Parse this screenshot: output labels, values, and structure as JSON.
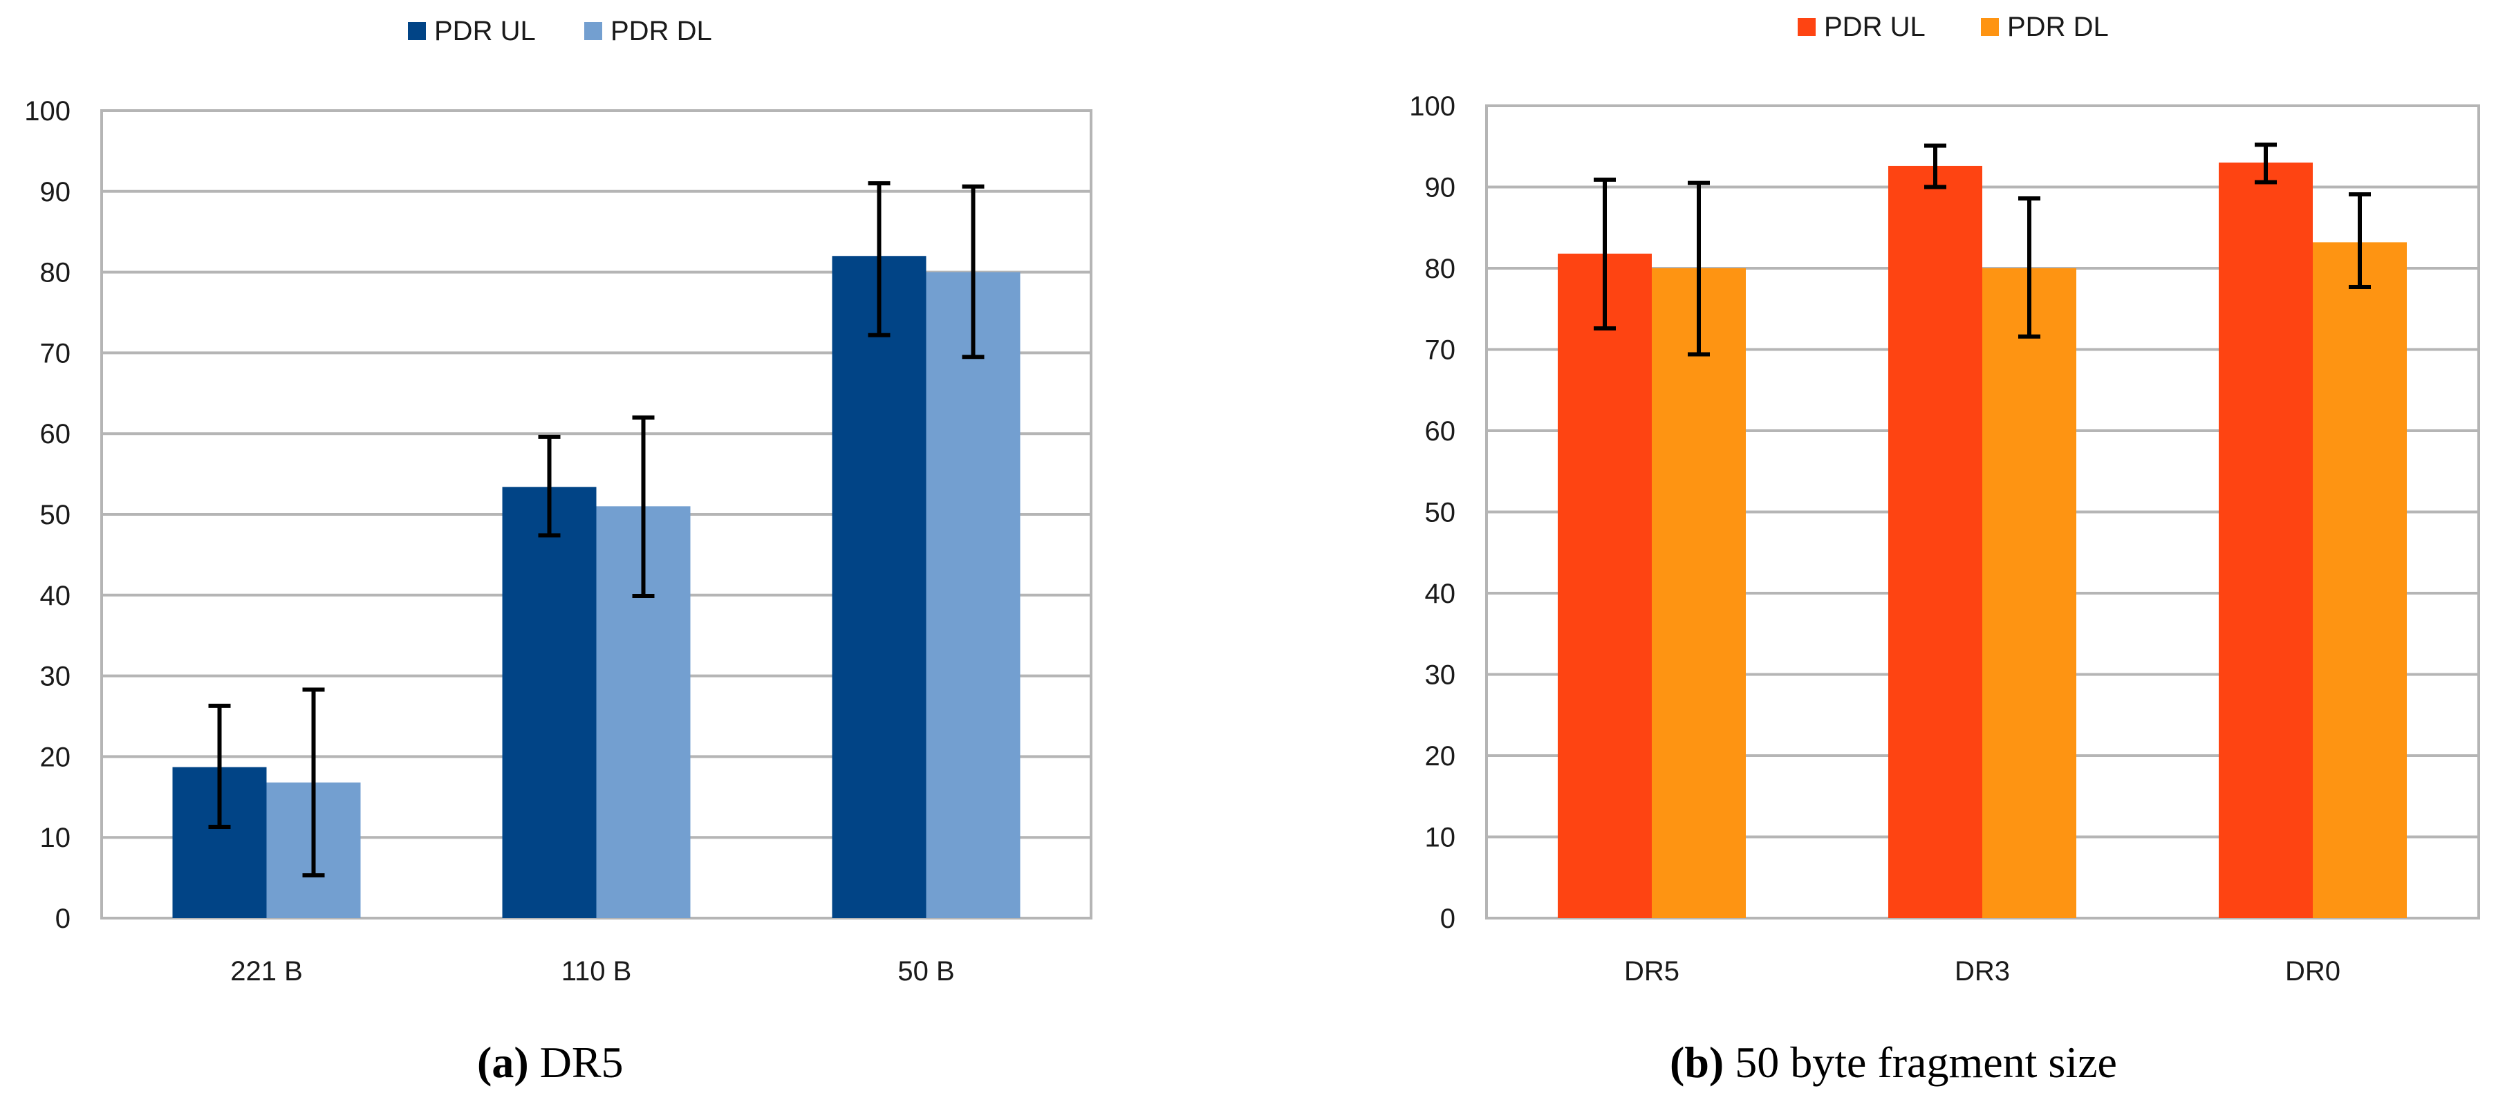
{
  "chart_data": [
    {
      "type": "bar",
      "panel": "(a)",
      "title": "DR5",
      "categories": [
        "221 B",
        "110 B",
        "50 B"
      ],
      "series": [
        {
          "name": "PDR UL",
          "color": "#014486",
          "values": [
            18.7,
            53.4,
            82.0
          ],
          "error_low": [
            11.3,
            47.4,
            72.2
          ],
          "error_high": [
            26.3,
            59.6,
            91.0
          ]
        },
        {
          "name": "PDR DL",
          "color": "#739fd0",
          "values": [
            16.8,
            51.0,
            80.0
          ],
          "error_low": [
            5.3,
            39.9,
            69.5
          ],
          "error_high": [
            28.3,
            62.0,
            90.6
          ]
        }
      ],
      "yticks": [
        "0",
        "10",
        "20",
        "30",
        "40",
        "50",
        "60",
        "70",
        "80",
        "90",
        "100"
      ],
      "ylim": [
        0,
        100
      ],
      "grid": true,
      "legend": "top-center",
      "xlabel": "",
      "ylabel": ""
    },
    {
      "type": "bar",
      "panel": "(b)",
      "title": "50 byte fragment size",
      "categories": [
        "DR5",
        "DR3",
        "DR0"
      ],
      "series": [
        {
          "name": "PDR UL",
          "color": "#fe4412",
          "values": [
            81.8,
            92.6,
            93.0
          ],
          "error_low": [
            72.6,
            90.0,
            90.6
          ],
          "error_high": [
            90.9,
            95.1,
            95.2
          ]
        },
        {
          "name": "PDR DL",
          "color": "#fe9412",
          "values": [
            80.0,
            80.0,
            83.2
          ],
          "error_low": [
            69.4,
            71.6,
            77.7
          ],
          "error_high": [
            90.5,
            88.6,
            89.1
          ]
        }
      ],
      "yticks": [
        "0",
        "10",
        "20",
        "30",
        "40",
        "50",
        "60",
        "70",
        "80",
        "90",
        "100"
      ],
      "ylim": [
        0,
        100
      ],
      "grid": true,
      "legend": "top-center",
      "xlabel": "",
      "ylabel": ""
    }
  ],
  "captions": [
    {
      "label": "(a)",
      "text": "DR5"
    },
    {
      "label": "(b)",
      "text": "50 byte fragment size"
    }
  ]
}
